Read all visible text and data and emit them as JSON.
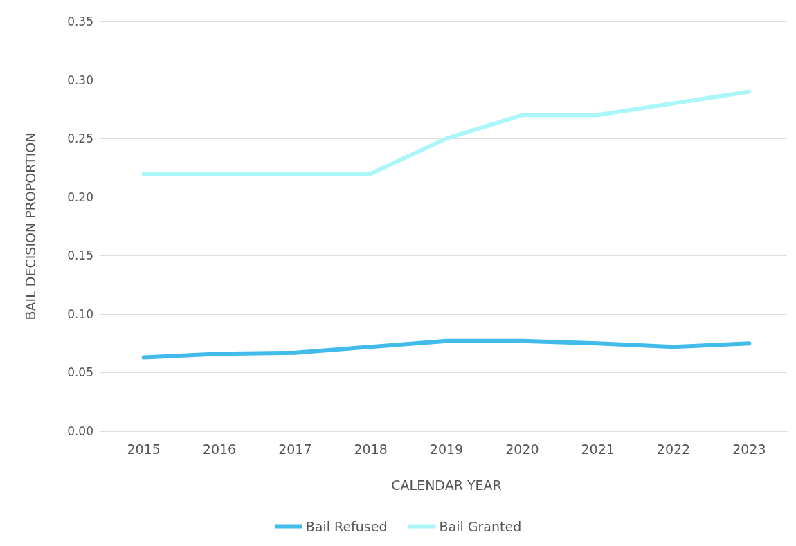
{
  "chart_data": {
    "type": "line",
    "xlabel": "CALENDAR YEAR",
    "ylabel": "BAIL DECISION PROPORTION",
    "categories": [
      "2015",
      "2016",
      "2017",
      "2018",
      "2019",
      "2020",
      "2021",
      "2022",
      "2023"
    ],
    "series": [
      {
        "name": "Bail Refused",
        "color": "#41bbe9",
        "values": [
          0.063,
          0.066,
          0.067,
          0.072,
          0.077,
          0.077,
          0.075,
          0.072,
          0.075
        ]
      },
      {
        "name": "Bail Granted",
        "color": "#abf6f8",
        "values": [
          0.22,
          0.22,
          0.22,
          0.22,
          0.25,
          0.27,
          0.27,
          0.28,
          0.29
        ]
      }
    ],
    "ylim": [
      0,
      0.35
    ],
    "yticks": [
      {
        "value": 0,
        "label": "0.00"
      },
      {
        "value": 0.05,
        "label": "0.05"
      },
      {
        "value": 0.1,
        "label": "0.10"
      },
      {
        "value": 0.15,
        "label": "0.15"
      },
      {
        "value": 0.2,
        "label": "0.20"
      },
      {
        "value": 0.25,
        "label": "0.25"
      },
      {
        "value": 0.3,
        "label": "0.30"
      },
      {
        "value": 0.35,
        "label": "0.35"
      }
    ],
    "grid": "y",
    "legend": "bottom",
    "marker": "none",
    "line_style": "solid"
  }
}
